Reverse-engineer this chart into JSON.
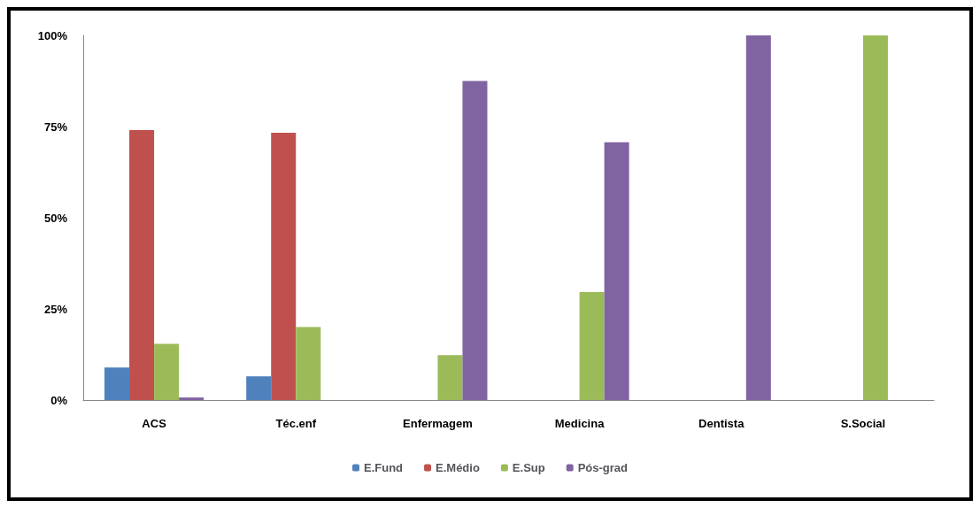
{
  "chart_data": {
    "type": "bar",
    "categories": [
      "ACS",
      "Téc.enf",
      "Enfermagem",
      "Medicina",
      "Dentista",
      "S.Social"
    ],
    "series": [
      {
        "name": "E.Fund",
        "color": "#4f81bd",
        "values": [
          8.9,
          6.5,
          null,
          null,
          null,
          null
        ]
      },
      {
        "name": "E.Médio",
        "color": "#c0504d",
        "values": [
          74,
          73.3,
          null,
          null,
          null,
          null
        ]
      },
      {
        "name": "E.Sup",
        "color": "#9bbb59",
        "values": [
          15.4,
          20,
          12.3,
          29.6,
          null,
          100
        ]
      },
      {
        "name": "Pós-grad",
        "color": "#8064a2",
        "values": [
          0.7,
          null,
          87.5,
          70.7,
          100,
          null
        ]
      }
    ],
    "ylim": [
      0,
      100
    ],
    "yticks": [
      {
        "value": 0,
        "label": "0%"
      },
      {
        "value": 25,
        "label": "25%"
      },
      {
        "value": 50,
        "label": "50%"
      },
      {
        "value": 75,
        "label": "75%"
      },
      {
        "value": 100,
        "label": "100%"
      }
    ],
    "grid": false,
    "legend": "bottom"
  }
}
